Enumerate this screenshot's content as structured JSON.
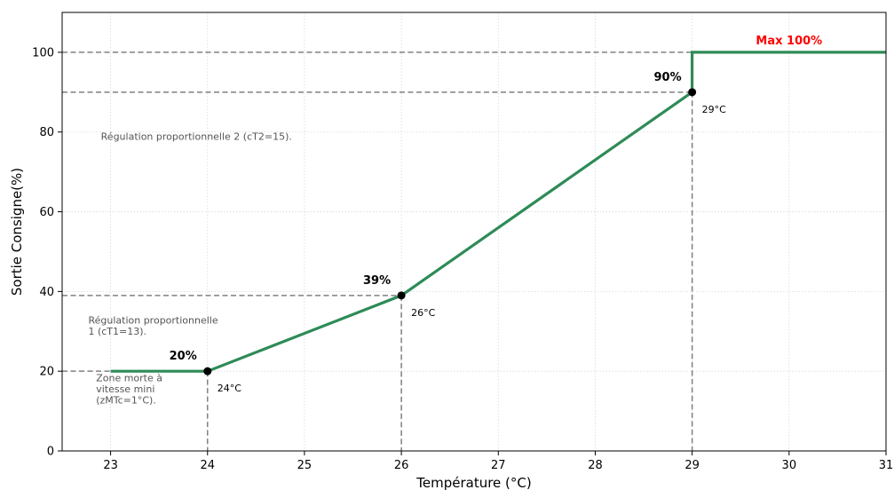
{
  "chart_data": {
    "type": "line",
    "xlabel": "Température (°C)",
    "ylabel": "Sortie Consigne(%)",
    "xlim": [
      22.5,
      31
    ],
    "ylim": [
      0,
      110
    ],
    "xticks": [
      "23",
      "24",
      "25",
      "26",
      "27",
      "28",
      "29",
      "30",
      "31"
    ],
    "yticks": [
      "0",
      "20",
      "40",
      "60",
      "80",
      "100"
    ],
    "grid": true,
    "series": [
      {
        "color": "#2e8b57",
        "points": [
          [
            23,
            20
          ],
          [
            24,
            20
          ],
          [
            26,
            39
          ],
          [
            29,
            90
          ],
          [
            29,
            100
          ],
          [
            31,
            100
          ]
        ]
      }
    ],
    "markers": [
      {
        "x": 24,
        "y": 20,
        "value_label": "20%",
        "temp_label": "24°C"
      },
      {
        "x": 26,
        "y": 39,
        "value_label": "39%",
        "temp_label": "26°C"
      },
      {
        "x": 29,
        "y": 90,
        "value_label": "90%",
        "temp_label": "29°C"
      }
    ],
    "reference_lines": [
      {
        "y": 20,
        "x_to": 24
      },
      {
        "y": 39,
        "x_to": 26
      },
      {
        "y": 90,
        "x_to": 29
      },
      {
        "y": 100,
        "x_to": 29
      }
    ],
    "max_label": {
      "text": "Max 100%",
      "color": "#ff0000"
    },
    "annotations": [
      {
        "lines": [
          "Régulation proportionnelle 2 (cT2=15)."
        ],
        "x": 22.9,
        "y": 78
      },
      {
        "lines": [
          "Régulation proportionnelle",
          "1 (cT1=13)."
        ],
        "x": 22.77,
        "y": 32
      },
      {
        "lines": [
          "Zone morte à",
          "vitesse mini",
          "(zMTc=1°C)."
        ],
        "x": 22.85,
        "y": 17.5
      }
    ]
  }
}
